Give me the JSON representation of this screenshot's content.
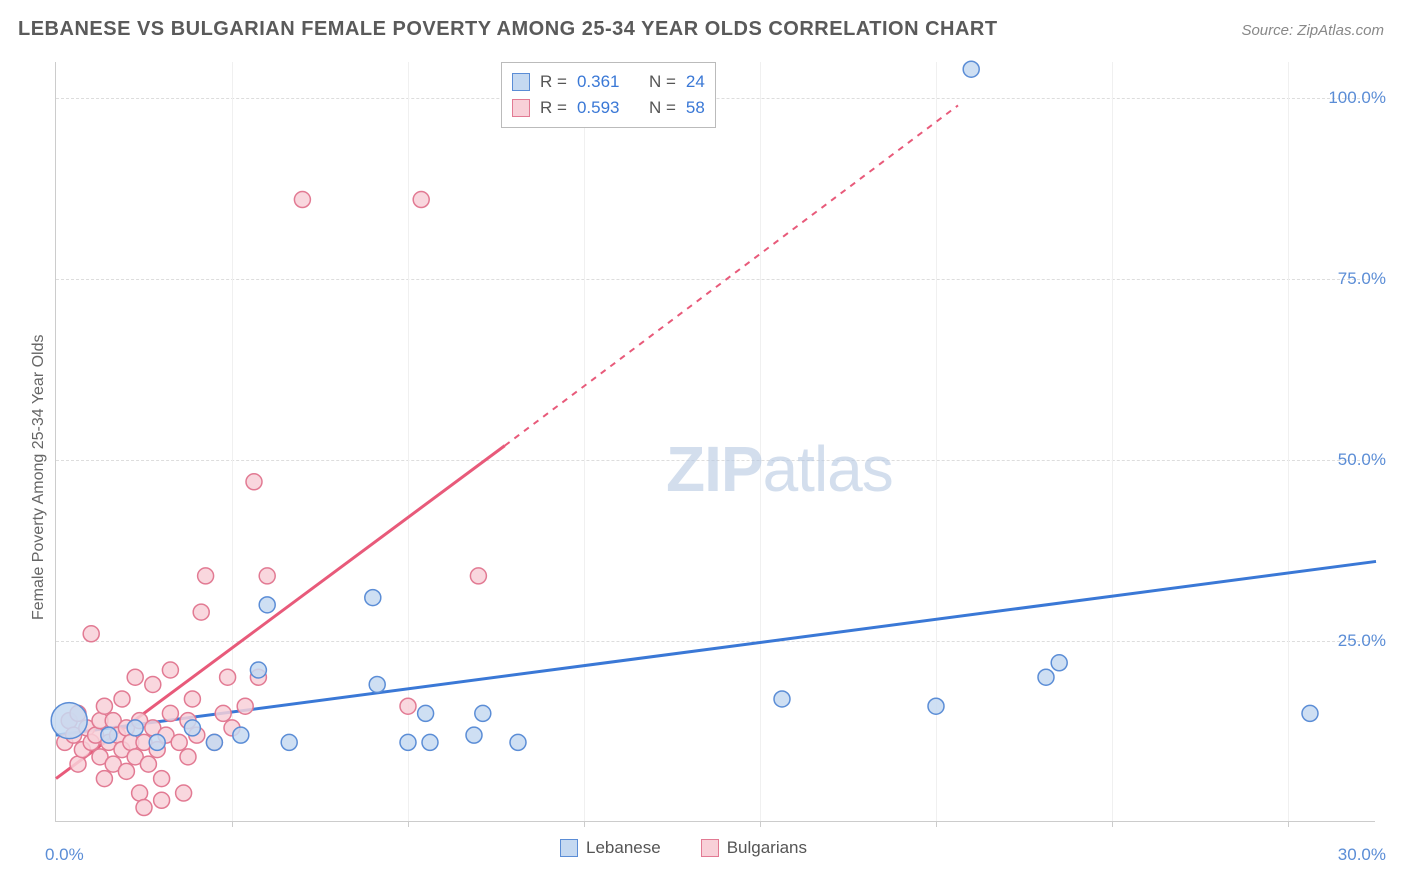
{
  "chart": {
    "type": "scatter",
    "title": "LEBANESE VS BULGARIAN FEMALE POVERTY AMONG 25-34 YEAR OLDS CORRELATION CHART",
    "source_label": "Source: ZipAtlas.com",
    "ylabel": "Female Poverty Among 25-34 Year Olds",
    "watermark": {
      "part1": "ZIP",
      "part2": "atlas"
    },
    "xlim": [
      0,
      30
    ],
    "ylim": [
      0,
      105
    ],
    "xtick_min": {
      "value": 0,
      "label": "0.0%"
    },
    "xtick_max": {
      "value": 30,
      "label": "30.0%"
    },
    "xgrid_values": [
      4,
      8,
      12,
      16,
      20,
      24,
      28
    ],
    "ytick_labels": [
      {
        "value": 25,
        "label": "25.0%"
      },
      {
        "value": 50,
        "label": "50.0%"
      },
      {
        "value": 75,
        "label": "75.0%"
      },
      {
        "value": 100,
        "label": "100.0%"
      }
    ],
    "ytick_color": "#5b8dd6",
    "xtick_color": "#5b8dd6",
    "background_color": "#ffffff",
    "grid_color": "#dddddd",
    "series": [
      {
        "name": "Lebanese",
        "marker_fill": "#c5d9f1",
        "marker_stroke": "#5b8dd6",
        "marker_radius": 8,
        "line_color": "#3a78d6",
        "line_width": 3,
        "R": "0.361",
        "N": "24",
        "trend": {
          "x1": 0,
          "y1": 12,
          "x2": 30,
          "y2": 36,
          "dash_after_x": 30
        },
        "points": [
          {
            "x": 0.3,
            "y": 14,
            "r": 18
          },
          {
            "x": 1.2,
            "y": 12
          },
          {
            "x": 1.8,
            "y": 13
          },
          {
            "x": 2.3,
            "y": 11
          },
          {
            "x": 3.1,
            "y": 13
          },
          {
            "x": 3.6,
            "y": 11
          },
          {
            "x": 4.2,
            "y": 12
          },
          {
            "x": 4.6,
            "y": 21
          },
          {
            "x": 4.8,
            "y": 30
          },
          {
            "x": 5.3,
            "y": 11
          },
          {
            "x": 7.2,
            "y": 31
          },
          {
            "x": 7.3,
            "y": 19
          },
          {
            "x": 8.0,
            "y": 11
          },
          {
            "x": 8.5,
            "y": 11
          },
          {
            "x": 8.4,
            "y": 15
          },
          {
            "x": 9.5,
            "y": 12
          },
          {
            "x": 9.7,
            "y": 15
          },
          {
            "x": 10.5,
            "y": 11
          },
          {
            "x": 16.5,
            "y": 17
          },
          {
            "x": 20.0,
            "y": 16
          },
          {
            "x": 20.8,
            "y": 104
          },
          {
            "x": 22.5,
            "y": 20
          },
          {
            "x": 22.8,
            "y": 22
          },
          {
            "x": 28.5,
            "y": 15
          }
        ]
      },
      {
        "name": "Bulgarians",
        "marker_fill": "#f8d0d8",
        "marker_stroke": "#e27a93",
        "marker_radius": 8,
        "line_color": "#e85a7a",
        "line_width": 3,
        "R": "0.593",
        "N": "58",
        "trend": {
          "x1": 0,
          "y1": 6,
          "x2": 10.2,
          "y2": 52,
          "dash_to_x": 20.5,
          "dash_to_y": 99
        },
        "points": [
          {
            "x": 0.2,
            "y": 11
          },
          {
            "x": 0.3,
            "y": 14
          },
          {
            "x": 0.4,
            "y": 12
          },
          {
            "x": 0.5,
            "y": 8
          },
          {
            "x": 0.5,
            "y": 15
          },
          {
            "x": 0.6,
            "y": 10
          },
          {
            "x": 0.7,
            "y": 13
          },
          {
            "x": 0.8,
            "y": 11
          },
          {
            "x": 0.8,
            "y": 26
          },
          {
            "x": 0.9,
            "y": 12
          },
          {
            "x": 1.0,
            "y": 9
          },
          {
            "x": 1.0,
            "y": 14
          },
          {
            "x": 1.1,
            "y": 16
          },
          {
            "x": 1.1,
            "y": 6
          },
          {
            "x": 1.2,
            "y": 11
          },
          {
            "x": 1.3,
            "y": 14
          },
          {
            "x": 1.3,
            "y": 8
          },
          {
            "x": 1.4,
            "y": 12
          },
          {
            "x": 1.5,
            "y": 10
          },
          {
            "x": 1.5,
            "y": 17
          },
          {
            "x": 1.6,
            "y": 7
          },
          {
            "x": 1.6,
            "y": 13
          },
          {
            "x": 1.7,
            "y": 11
          },
          {
            "x": 1.8,
            "y": 9
          },
          {
            "x": 1.8,
            "y": 20
          },
          {
            "x": 1.9,
            "y": 14
          },
          {
            "x": 1.9,
            "y": 4
          },
          {
            "x": 2.0,
            "y": 11
          },
          {
            "x": 2.0,
            "y": 2
          },
          {
            "x": 2.1,
            "y": 8
          },
          {
            "x": 2.2,
            "y": 19
          },
          {
            "x": 2.2,
            "y": 13
          },
          {
            "x": 2.3,
            "y": 10
          },
          {
            "x": 2.4,
            "y": 6
          },
          {
            "x": 2.4,
            "y": 3
          },
          {
            "x": 2.5,
            "y": 12
          },
          {
            "x": 2.6,
            "y": 15
          },
          {
            "x": 2.6,
            "y": 21
          },
          {
            "x": 2.8,
            "y": 11
          },
          {
            "x": 2.9,
            "y": 4
          },
          {
            "x": 3.0,
            "y": 14
          },
          {
            "x": 3.0,
            "y": 9
          },
          {
            "x": 3.1,
            "y": 17
          },
          {
            "x": 3.2,
            "y": 12
          },
          {
            "x": 3.3,
            "y": 29
          },
          {
            "x": 3.4,
            "y": 34
          },
          {
            "x": 3.6,
            "y": 11
          },
          {
            "x": 3.8,
            "y": 15
          },
          {
            "x": 3.9,
            "y": 20
          },
          {
            "x": 4.0,
            "y": 13
          },
          {
            "x": 4.3,
            "y": 16
          },
          {
            "x": 4.5,
            "y": 47
          },
          {
            "x": 4.6,
            "y": 20
          },
          {
            "x": 4.8,
            "y": 34
          },
          {
            "x": 5.6,
            "y": 86
          },
          {
            "x": 8.0,
            "y": 16
          },
          {
            "x": 8.3,
            "y": 86
          },
          {
            "x": 9.6,
            "y": 34
          }
        ]
      }
    ],
    "stats_box": {
      "label_R": "R  =",
      "label_N": "N  =",
      "value_color": "#3a78d6"
    },
    "legend": {
      "items": [
        "Lebanese",
        "Bulgarians"
      ]
    }
  }
}
